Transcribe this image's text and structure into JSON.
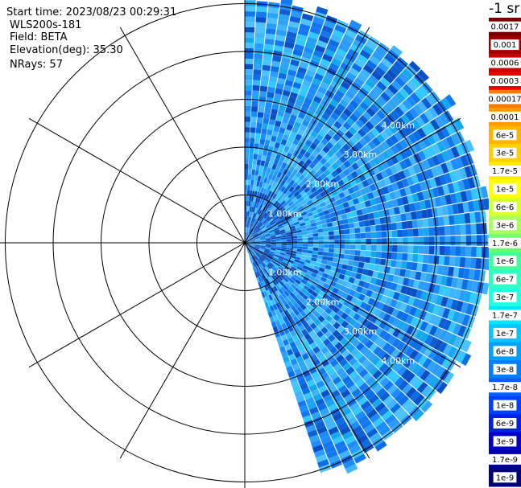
{
  "info": {
    "start_time": "Start time: 2023/08/23 00:29:31",
    "instrument": "WLS200s-181",
    "field": "Field: BETA",
    "elevation": "Elevation(deg): 35.30",
    "nrays": "NRays: 57"
  },
  "chart_data": {
    "type": "polar-ppi",
    "field": "BETA",
    "units": "-1 sr",
    "range_rings_km": [
      1,
      2,
      3,
      4,
      5
    ],
    "ring_labels": [
      "1.00km",
      "2.00km",
      "3.00km",
      "4.00km"
    ],
    "sector_deg": [
      0,
      162
    ],
    "num_rays": 57,
    "colorbar": {
      "title": "-1 sr",
      "labels": [
        "0.0017",
        "0.001",
        "0.0006",
        "0.0003",
        "0.00017",
        "0.0001",
        "6e-5",
        "3e-5",
        "1.7e-5",
        "1e-5",
        "6e-6",
        "3e-6",
        "1.7e-6",
        "1e-6",
        "6e-7",
        "3e-7",
        "1.7e-7",
        "1e-7",
        "6e-8",
        "3e-8",
        "1.7e-8",
        "1e-8",
        "6e-9",
        "3e-9",
        "1.7e-9",
        "1e-9"
      ],
      "colors": [
        "#7a0000",
        "#a00000",
        "#c80000",
        "#f00000",
        "#ff7a00",
        "#ff9a00",
        "#ffb400",
        "#ffd000",
        "#ffee00",
        "#ffff00",
        "#d8ff30",
        "#a8ff60",
        "#70ff70",
        "#40ff9a",
        "#30ffc4",
        "#20ffe0",
        "#00e8ff",
        "#00c8ff",
        "#00a0ff",
        "#0080ff",
        "#0060ff",
        "#0040ff",
        "#0020e8",
        "#0000c8",
        "#0000a0",
        "#000078"
      ]
    }
  }
}
